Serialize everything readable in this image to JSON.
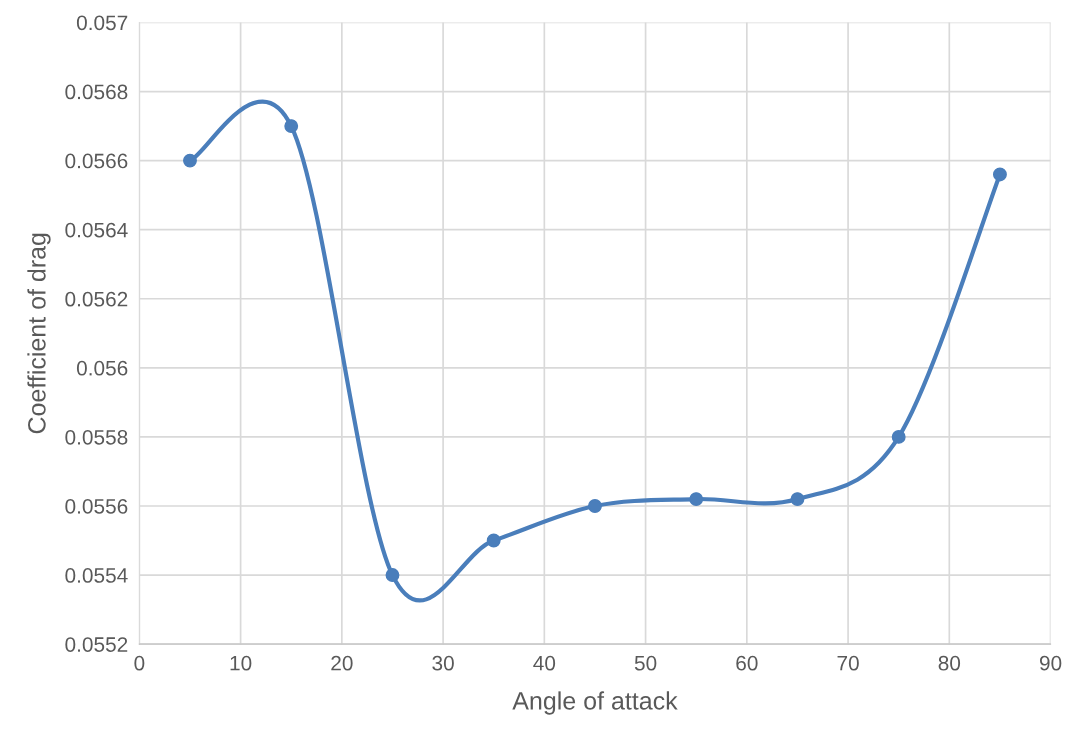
{
  "chart_data": {
    "type": "line",
    "xlabel": "Angle of attack",
    "ylabel": "Coefficient of drag",
    "x": [
      5,
      15,
      25,
      35,
      45,
      55,
      65,
      75,
      85
    ],
    "series": [
      {
        "color": "#4a7ebb",
        "values": [
          0.0566,
          0.0567,
          0.0554,
          0.0555,
          0.0556,
          0.05562,
          0.05562,
          0.0558,
          0.05656
        ]
      }
    ],
    "xlim": [
      0,
      90
    ],
    "xticks": [
      0,
      10,
      20,
      30,
      40,
      50,
      60,
      70,
      80,
      90
    ],
    "ylim": [
      0.0552,
      0.057
    ],
    "yticks": [
      0.0552,
      0.0554,
      0.0556,
      0.0558,
      0.056,
      0.0562,
      0.0564,
      0.0566,
      0.0568,
      0.057
    ],
    "grid": true,
    "marker": "circle",
    "line_style": "solid"
  }
}
